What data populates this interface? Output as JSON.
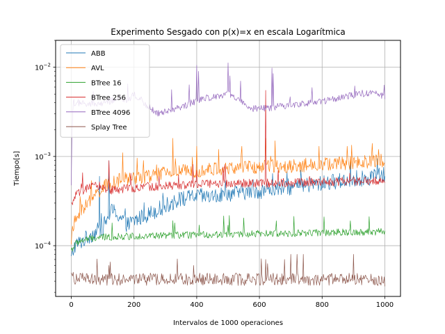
{
  "chart_data": {
    "type": "line",
    "title": "Experimento Sesgado con p(x)=x en escala Logarítmica",
    "xlabel": "Intervalos de 1000 operaciones",
    "ylabel": "Tiempo[s]",
    "yscale": "log",
    "xlim": [
      -50,
      1050
    ],
    "ylim": [
      2.7e-05,
      0.02
    ],
    "xticks": [
      0,
      200,
      400,
      600,
      800,
      1000
    ],
    "xtick_labels": [
      "0",
      "200",
      "400",
      "600",
      "800",
      "1000"
    ],
    "yticks": [
      0.0001,
      0.001,
      0.01
    ],
    "ytick_labels": [
      "10^-4",
      "10^-3",
      "10^-2"
    ],
    "grid": true,
    "legend_position": "top-left",
    "series": [
      {
        "name": "ABB",
        "color": "#1f77b4",
        "x": [
          0,
          10,
          30,
          60,
          100,
          130,
          150,
          180,
          200,
          250,
          300,
          350,
          400,
          450,
          500,
          550,
          600,
          650,
          700,
          750,
          800,
          850,
          900,
          950,
          1000
        ],
        "y": [
          7e-05,
          0.0001,
          0.00011,
          0.00013,
          0.00016,
          0.00025,
          0.00022,
          0.00017,
          0.00019,
          0.00023,
          0.00028,
          0.00033,
          0.00036,
          0.00035,
          0.00038,
          0.0004,
          0.00041,
          0.00043,
          0.00045,
          0.00047,
          0.0005,
          0.00053,
          0.00055,
          0.00058,
          0.00062
        ],
        "spikes": [
          {
            "x": 90,
            "y": 0.0006
          },
          {
            "x": 120,
            "y": 0.0009
          },
          {
            "x": 580,
            "y": 0.00055
          },
          {
            "x": 910,
            "y": 0.0007
          }
        ]
      },
      {
        "name": "AVL",
        "color": "#ff7f0e",
        "x": [
          0,
          10,
          30,
          60,
          100,
          130,
          160,
          200,
          250,
          300,
          350,
          400,
          450,
          500,
          550,
          600,
          650,
          700,
          750,
          800,
          850,
          900,
          950,
          1000
        ],
        "y": [
          0.00012,
          0.00018,
          0.00025,
          0.00032,
          0.00045,
          0.0005,
          0.00055,
          0.00058,
          0.0006,
          0.00065,
          0.00068,
          0.0007,
          0.00072,
          0.00073,
          0.00075,
          0.00076,
          0.00078,
          0.00078,
          0.0008,
          0.00082,
          0.00083,
          0.00085,
          0.00087,
          0.0009
        ],
        "spikes": [
          {
            "x": 165,
            "y": 0.0011
          },
          {
            "x": 230,
            "y": 0.0009
          },
          {
            "x": 325,
            "y": 0.0016
          },
          {
            "x": 400,
            "y": 0.0013
          },
          {
            "x": 470,
            "y": 0.0012
          },
          {
            "x": 545,
            "y": 0.0013
          },
          {
            "x": 620,
            "y": 0.0016
          },
          {
            "x": 650,
            "y": 0.0015
          },
          {
            "x": 790,
            "y": 0.0013
          },
          {
            "x": 880,
            "y": 0.0013
          },
          {
            "x": 960,
            "y": 0.0014
          },
          {
            "x": 980,
            "y": 0.0012
          }
        ]
      },
      {
        "name": "BTree 16",
        "color": "#2ca02c",
        "x": [
          0,
          20,
          50,
          100,
          150,
          200,
          300,
          400,
          500,
          600,
          700,
          800,
          900,
          1000
        ],
        "y": [
          9e-05,
          0.00011,
          0.000118,
          0.000124,
          0.000126,
          0.000128,
          0.00013,
          0.000132,
          0.000134,
          0.000136,
          0.000138,
          0.00014,
          0.000142,
          0.000144
        ],
        "spikes": [
          {
            "x": 130,
            "y": 0.00018
          },
          {
            "x": 330,
            "y": 0.00018
          },
          {
            "x": 500,
            "y": 0.00017
          },
          {
            "x": 655,
            "y": 0.00019
          },
          {
            "x": 890,
            "y": 0.00019
          }
        ]
      },
      {
        "name": "BTree 256",
        "color": "#d62728",
        "x": [
          0,
          10,
          30,
          60,
          90,
          120,
          150,
          200,
          250,
          300,
          350,
          400,
          500,
          600,
          700,
          800,
          900,
          1000
        ],
        "y": [
          0.00028,
          0.00035,
          0.0004,
          0.00045,
          0.00047,
          0.00042,
          0.00043,
          0.00044,
          0.00046,
          0.00047,
          0.00048,
          0.00049,
          0.0005,
          0.0005,
          0.00051,
          0.00052,
          0.00053,
          0.00054
        ],
        "spikes": [
          {
            "x": 120,
            "y": 0.0009
          },
          {
            "x": 280,
            "y": 0.0006
          },
          {
            "x": 400,
            "y": 0.0007
          },
          {
            "x": 620,
            "y": 0.0055
          },
          {
            "x": 660,
            "y": 0.0007
          },
          {
            "x": 760,
            "y": 0.0006
          }
        ]
      },
      {
        "name": "BTree 4096",
        "color": "#9467bd",
        "x": [
          0,
          5,
          20,
          50,
          100,
          150,
          180,
          200,
          240,
          280,
          300,
          350,
          400,
          450,
          500,
          540,
          560,
          600,
          650,
          700,
          750,
          800,
          850,
          900,
          950,
          1000
        ],
        "y": [
          0.0005,
          0.004,
          0.004,
          0.0038,
          0.0039,
          0.0045,
          0.0042,
          0.005,
          0.0038,
          0.003,
          0.0032,
          0.0036,
          0.0042,
          0.0047,
          0.005,
          0.0042,
          0.0035,
          0.0034,
          0.0036,
          0.0038,
          0.004,
          0.0042,
          0.0044,
          0.0049,
          0.0052,
          0.0048
        ],
        "spikes": [
          {
            "x": 400,
            "y": 0.0105
          },
          {
            "x": 407,
            "y": 0.009
          },
          {
            "x": 500,
            "y": 0.0112
          },
          {
            "x": 506,
            "y": 0.008
          },
          {
            "x": 640,
            "y": 0.0098
          },
          {
            "x": 645,
            "y": 0.0085
          }
        ]
      },
      {
        "name": "Splay Tree",
        "color": "#8c564b",
        "x": [
          0,
          10,
          50,
          100,
          200,
          300,
          400,
          500,
          600,
          700,
          800,
          900,
          1000
        ],
        "y": [
          4.8e-05,
          4.3e-05,
          4.2e-05,
          4.2e-05,
          4.2e-05,
          4.2e-05,
          4.2e-05,
          4.2e-05,
          4.2e-05,
          4.2e-05,
          4.2e-05,
          4.2e-05,
          4.1e-05
        ],
        "spikes": [
          {
            "x": 120,
            "y": 6e-05
          },
          {
            "x": 390,
            "y": 6e-05
          },
          {
            "x": 620,
            "y": 7e-05
          },
          {
            "x": 680,
            "y": 7e-05
          },
          {
            "x": 700,
            "y": 8e-05
          },
          {
            "x": 720,
            "y": 8e-05
          },
          {
            "x": 740,
            "y": 8e-05
          },
          {
            "x": 900,
            "y": 8e-05
          }
        ]
      }
    ]
  }
}
